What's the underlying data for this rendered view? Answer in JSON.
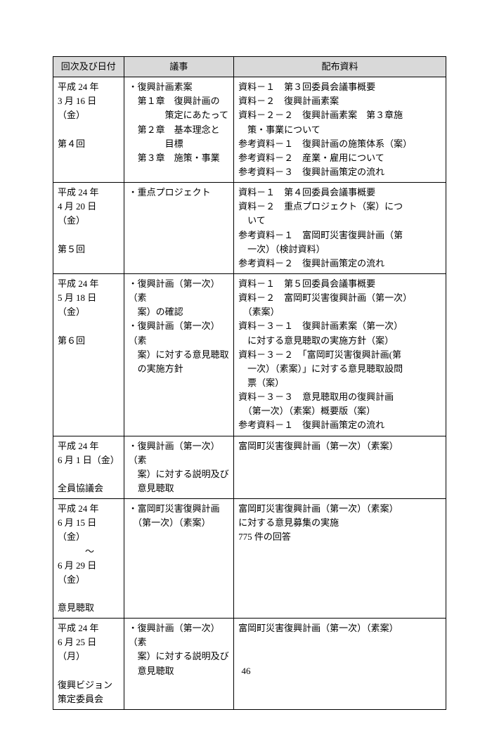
{
  "table": {
    "headers": [
      "回次及び日付",
      "議事",
      "配布資料"
    ],
    "col_widths_pct": [
      18,
      28,
      54
    ],
    "header_bg": "#d9d9d9",
    "border_color": "#000000",
    "font_size_pt": 10,
    "rows": [
      {
        "c1": [
          "平成 24 年",
          "3 月 16 日（金）",
          "",
          "第４回"
        ],
        "c2": [
          "・復興計画素案",
          "　第１章　復興計画の",
          "　　　　策定にあたって",
          "　第２章　基本理念と",
          "　　　　目標",
          "　第３章　施策・事業"
        ],
        "c3": [
          "資料－１　第３回委員会議事概要",
          "資料－２　復興計画素案",
          "資料－２－２　復興計画素案　第３章施",
          "　策・事業について",
          "参考資料－１　復興計画の施策体系（案）",
          "参考資料－２　産業・雇用について",
          "参考資料－３　復興計画策定の流れ"
        ]
      },
      {
        "c1": [
          "平成 24 年",
          "4 月 20 日（金）",
          "",
          "第５回"
        ],
        "c2": [
          "・重点プロジェクト"
        ],
        "c3": [
          "資料－１　第４回委員会議事概要",
          "資料－２　重点プロジェクト（案）につ",
          "　いて",
          "参考資料－１　富岡町災害復興計画（第",
          "　一次）（検討資料）",
          "参考資料－２　復興計画策定の流れ"
        ]
      },
      {
        "c1": [
          "平成 24 年",
          "5 月 18 日（金）",
          "",
          "第６回"
        ],
        "c2": [
          "・復興計画（第一次）（素",
          "　案）の確認",
          "・復興計画（第一次）（素",
          "　案）に対する意見聴取",
          "　の実施方針"
        ],
        "c3": [
          "資料－１　第５回委員会議事概要",
          "資料－２　富岡町災害復興計画（第一次）",
          "　（素案）",
          "資料－３－１　復興計画素案（第一次）",
          "　に対する意見聴取の実施方針（案）",
          "資料－３－２　「富岡町災害復興計画(第",
          "　一次）（素案）」に対する意見聴取設問",
          "　票（案）",
          "資料－３－３　意見聴取用の復興計画",
          "　（第一次）（素案）概要版（案）",
          "参考資料－１　復興計画策定の流れ"
        ]
      },
      {
        "c1": [
          "平成 24 年",
          "6 月 1 日（金）",
          "",
          "全員協議会"
        ],
        "c2": [
          "・復興計画（第一次）（素",
          "　案）に対する説明及び",
          "　意見聴取"
        ],
        "c3": [
          "富岡町災害復興計画（第一次）（素案）"
        ]
      },
      {
        "c1": [
          "平成 24 年",
          "6 月 15 日 （金）",
          "　　　～",
          "6 月 29 日（金）",
          "",
          "意見聴取"
        ],
        "c2": [
          "・富岡町災害復興計画",
          "　（第一次）（素案）"
        ],
        "c3": [
          "富岡町災害復興計画（第一次）（素案）",
          "に対する意見募集の実施",
          "775 件の回答"
        ]
      },
      {
        "c1": [
          "平成 24 年",
          "6 月 25 日（月）",
          "",
          "復興ビジョン",
          "策定委員会"
        ],
        "c2": [
          "・復興計画（第一次）（素",
          "　案）に対する説明及び",
          "　意見聴取"
        ],
        "c3": [
          "富岡町災害復興計画（第一次）（素案）"
        ]
      }
    ]
  },
  "page_number": "46"
}
